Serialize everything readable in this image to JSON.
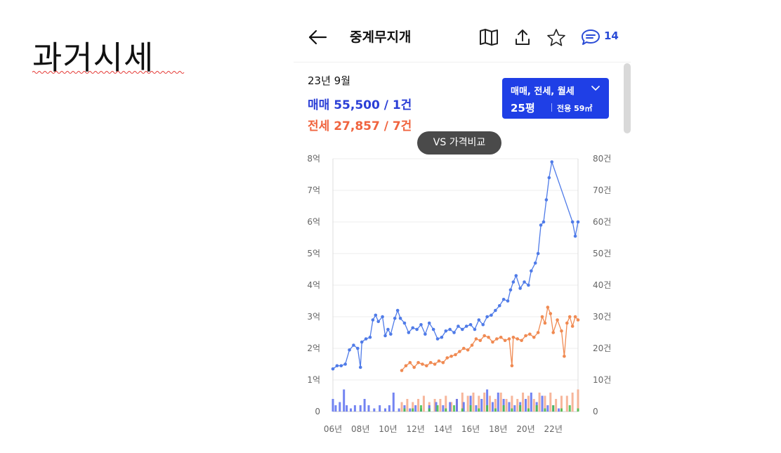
{
  "slide": {
    "title": "과거시세"
  },
  "app": {
    "title": "중계무지개",
    "comment_count": "14"
  },
  "summary": {
    "date": "23년 9월",
    "sale": "매매 55,500 / 1건",
    "jeonse": "전세 27,857 / 7건"
  },
  "filter": {
    "types": "매매, 전세, 월세",
    "size": "25평",
    "area": "전용 59㎡"
  },
  "compare_button": "VS 가격비교",
  "icons": [
    "back-arrow-icon",
    "map-book-icon",
    "share-icon",
    "star-icon",
    "comment-icon",
    "chevron-down-icon"
  ],
  "colors": {
    "sale": "#4f7be8",
    "jeonse": "#f08a52",
    "accent": "#1f3fe6",
    "volume_green": "#44c04a"
  },
  "chart_data": {
    "type": "line",
    "title": "",
    "xlabel": "",
    "x_ticks": [
      "06년",
      "08년",
      "10년",
      "12년",
      "14년",
      "16년",
      "18년",
      "20년",
      "22년"
    ],
    "y_left_ticks": [
      "0",
      "1억",
      "2억",
      "3억",
      "4억",
      "5억",
      "6억",
      "7억",
      "8억"
    ],
    "y_left_range": [
      0,
      8
    ],
    "y_right_ticks": [
      "0",
      "10건",
      "20건",
      "30건",
      "40건",
      "50건",
      "60건",
      "70건",
      "80건"
    ],
    "y_right_range": [
      0,
      80
    ],
    "grid": true,
    "series": [
      {
        "name": "매매",
        "unit": "억",
        "points": [
          [
            2006.0,
            1.35
          ],
          [
            2006.3,
            1.45
          ],
          [
            2006.6,
            1.45
          ],
          [
            2006.9,
            1.5
          ],
          [
            2007.2,
            1.95
          ],
          [
            2007.5,
            2.1
          ],
          [
            2007.8,
            2.0
          ],
          [
            2008.0,
            1.4
          ],
          [
            2008.1,
            2.2
          ],
          [
            2008.4,
            2.3
          ],
          [
            2008.7,
            2.35
          ],
          [
            2008.9,
            2.9
          ],
          [
            2009.1,
            3.05
          ],
          [
            2009.3,
            2.85
          ],
          [
            2009.6,
            3.0
          ],
          [
            2009.8,
            2.4
          ],
          [
            2010.0,
            2.6
          ],
          [
            2010.2,
            2.45
          ],
          [
            2010.5,
            2.95
          ],
          [
            2010.7,
            3.2
          ],
          [
            2010.9,
            2.95
          ],
          [
            2011.2,
            2.8
          ],
          [
            2011.5,
            2.5
          ],
          [
            2011.8,
            2.65
          ],
          [
            2012.1,
            2.6
          ],
          [
            2012.4,
            2.75
          ],
          [
            2012.7,
            2.45
          ],
          [
            2013.0,
            2.8
          ],
          [
            2013.3,
            2.6
          ],
          [
            2013.6,
            2.3
          ],
          [
            2013.9,
            2.35
          ],
          [
            2014.2,
            2.55
          ],
          [
            2014.5,
            2.6
          ],
          [
            2014.8,
            2.5
          ],
          [
            2015.1,
            2.7
          ],
          [
            2015.4,
            2.6
          ],
          [
            2015.7,
            2.7
          ],
          [
            2016.0,
            2.75
          ],
          [
            2016.3,
            2.6
          ],
          [
            2016.6,
            2.9
          ],
          [
            2016.9,
            2.75
          ],
          [
            2017.2,
            3.0
          ],
          [
            2017.5,
            3.05
          ],
          [
            2017.8,
            3.2
          ],
          [
            2018.1,
            3.35
          ],
          [
            2018.4,
            3.55
          ],
          [
            2018.7,
            3.5
          ],
          [
            2018.9,
            3.85
          ],
          [
            2019.1,
            4.1
          ],
          [
            2019.3,
            4.3
          ],
          [
            2019.6,
            3.9
          ],
          [
            2019.9,
            4.1
          ],
          [
            2020.2,
            4.0
          ],
          [
            2020.4,
            4.45
          ],
          [
            2020.7,
            4.7
          ],
          [
            2020.9,
            5.0
          ],
          [
            2021.1,
            5.9
          ],
          [
            2021.3,
            6.0
          ],
          [
            2021.5,
            6.7
          ],
          [
            2021.7,
            7.4
          ],
          [
            2021.9,
            7.9
          ],
          [
            2023.4,
            6.0
          ],
          [
            2023.6,
            5.55
          ],
          [
            2023.8,
            6.0
          ]
        ]
      },
      {
        "name": "전세",
        "unit": "억",
        "points": [
          [
            2011.0,
            1.3
          ],
          [
            2011.3,
            1.45
          ],
          [
            2011.6,
            1.55
          ],
          [
            2011.9,
            1.4
          ],
          [
            2012.2,
            1.55
          ],
          [
            2012.5,
            1.5
          ],
          [
            2012.8,
            1.45
          ],
          [
            2013.1,
            1.55
          ],
          [
            2013.4,
            1.5
          ],
          [
            2013.7,
            1.6
          ],
          [
            2014.0,
            1.55
          ],
          [
            2014.3,
            1.7
          ],
          [
            2014.6,
            1.75
          ],
          [
            2014.9,
            1.8
          ],
          [
            2015.2,
            1.9
          ],
          [
            2015.5,
            2.0
          ],
          [
            2015.8,
            1.95
          ],
          [
            2016.1,
            2.1
          ],
          [
            2016.4,
            2.3
          ],
          [
            2016.7,
            2.25
          ],
          [
            2017.0,
            2.4
          ],
          [
            2017.3,
            2.35
          ],
          [
            2017.6,
            2.2
          ],
          [
            2017.9,
            2.3
          ],
          [
            2018.2,
            2.35
          ],
          [
            2018.5,
            2.25
          ],
          [
            2018.8,
            2.3
          ],
          [
            2019.0,
            1.45
          ],
          [
            2019.1,
            2.35
          ],
          [
            2019.4,
            2.3
          ],
          [
            2019.7,
            2.25
          ],
          [
            2020.0,
            2.4
          ],
          [
            2020.3,
            2.45
          ],
          [
            2020.6,
            2.35
          ],
          [
            2020.9,
            2.5
          ],
          [
            2021.2,
            3.0
          ],
          [
            2021.4,
            2.8
          ],
          [
            2021.6,
            3.3
          ],
          [
            2021.8,
            3.1
          ],
          [
            2022.0,
            2.5
          ],
          [
            2022.3,
            2.9
          ],
          [
            2022.6,
            2.55
          ],
          [
            2022.8,
            1.75
          ],
          [
            2023.0,
            2.8
          ],
          [
            2023.2,
            3.0
          ],
          [
            2023.4,
            2.7
          ],
          [
            2023.6,
            3.0
          ],
          [
            2023.8,
            2.9
          ]
        ]
      }
    ],
    "volume_bars": {
      "unit": "건",
      "sale": [
        [
          2006.0,
          4
        ],
        [
          2006.2,
          2
        ],
        [
          2006.5,
          3
        ],
        [
          2006.8,
          7
        ],
        [
          2007.0,
          2
        ],
        [
          2007.3,
          1
        ],
        [
          2007.6,
          2
        ],
        [
          2008.0,
          2
        ],
        [
          2008.3,
          4
        ],
        [
          2008.6,
          2
        ],
        [
          2009.0,
          1
        ],
        [
          2009.4,
          2
        ],
        [
          2009.8,
          1
        ],
        [
          2010.1,
          2
        ],
        [
          2010.4,
          6
        ],
        [
          2010.8,
          1
        ],
        [
          2011.2,
          2
        ],
        [
          2011.6,
          1
        ],
        [
          2012.0,
          2
        ],
        [
          2012.4,
          1
        ],
        [
          2013.0,
          2
        ],
        [
          2013.5,
          3
        ],
        [
          2014.0,
          2
        ],
        [
          2014.5,
          3
        ],
        [
          2015.0,
          4
        ],
        [
          2015.5,
          3
        ],
        [
          2016.0,
          5
        ],
        [
          2016.4,
          2
        ],
        [
          2016.8,
          4
        ],
        [
          2017.2,
          7
        ],
        [
          2017.6,
          3
        ],
        [
          2018.0,
          6
        ],
        [
          2018.4,
          4
        ],
        [
          2018.8,
          3
        ],
        [
          2019.2,
          2
        ],
        [
          2019.6,
          3
        ],
        [
          2020.0,
          4
        ],
        [
          2020.4,
          6
        ],
        [
          2020.8,
          3
        ],
        [
          2021.2,
          5
        ],
        [
          2021.6,
          2
        ],
        [
          2022.0,
          2
        ],
        [
          2022.4,
          1
        ]
      ],
      "jeonse": [
        [
          2011.0,
          3
        ],
        [
          2011.4,
          4
        ],
        [
          2011.8,
          3
        ],
        [
          2012.2,
          4
        ],
        [
          2012.6,
          5
        ],
        [
          2013.0,
          3
        ],
        [
          2013.4,
          4
        ],
        [
          2013.8,
          4
        ],
        [
          2014.2,
          5
        ],
        [
          2014.6,
          3
        ],
        [
          2015.0,
          4
        ],
        [
          2015.4,
          6
        ],
        [
          2015.8,
          5
        ],
        [
          2016.2,
          6
        ],
        [
          2016.6,
          5
        ],
        [
          2017.0,
          6
        ],
        [
          2017.4,
          5
        ],
        [
          2017.8,
          4
        ],
        [
          2018.2,
          6
        ],
        [
          2018.6,
          4
        ],
        [
          2019.0,
          5
        ],
        [
          2019.4,
          4
        ],
        [
          2019.8,
          6
        ],
        [
          2020.2,
          5
        ],
        [
          2020.6,
          4
        ],
        [
          2021.0,
          6
        ],
        [
          2021.4,
          5
        ],
        [
          2021.8,
          6
        ],
        [
          2022.2,
          4
        ],
        [
          2022.6,
          5
        ],
        [
          2023.0,
          5
        ],
        [
          2023.4,
          6
        ],
        [
          2023.8,
          7
        ]
      ],
      "monthly": [
        [
          2011.2,
          1
        ],
        [
          2011.8,
          1
        ],
        [
          2012.4,
          2
        ],
        [
          2013.0,
          1
        ],
        [
          2013.6,
          2
        ],
        [
          2014.2,
          1
        ],
        [
          2014.8,
          2
        ],
        [
          2015.4,
          1
        ],
        [
          2016.0,
          2
        ],
        [
          2016.6,
          1
        ],
        [
          2017.2,
          2
        ],
        [
          2017.8,
          1
        ],
        [
          2018.4,
          2
        ],
        [
          2019.0,
          1
        ],
        [
          2019.6,
          2
        ],
        [
          2020.2,
          1
        ],
        [
          2020.8,
          2
        ],
        [
          2021.4,
          1
        ],
        [
          2022.0,
          2
        ],
        [
          2022.6,
          1
        ],
        [
          2023.2,
          2
        ],
        [
          2023.8,
          1
        ]
      ]
    }
  }
}
